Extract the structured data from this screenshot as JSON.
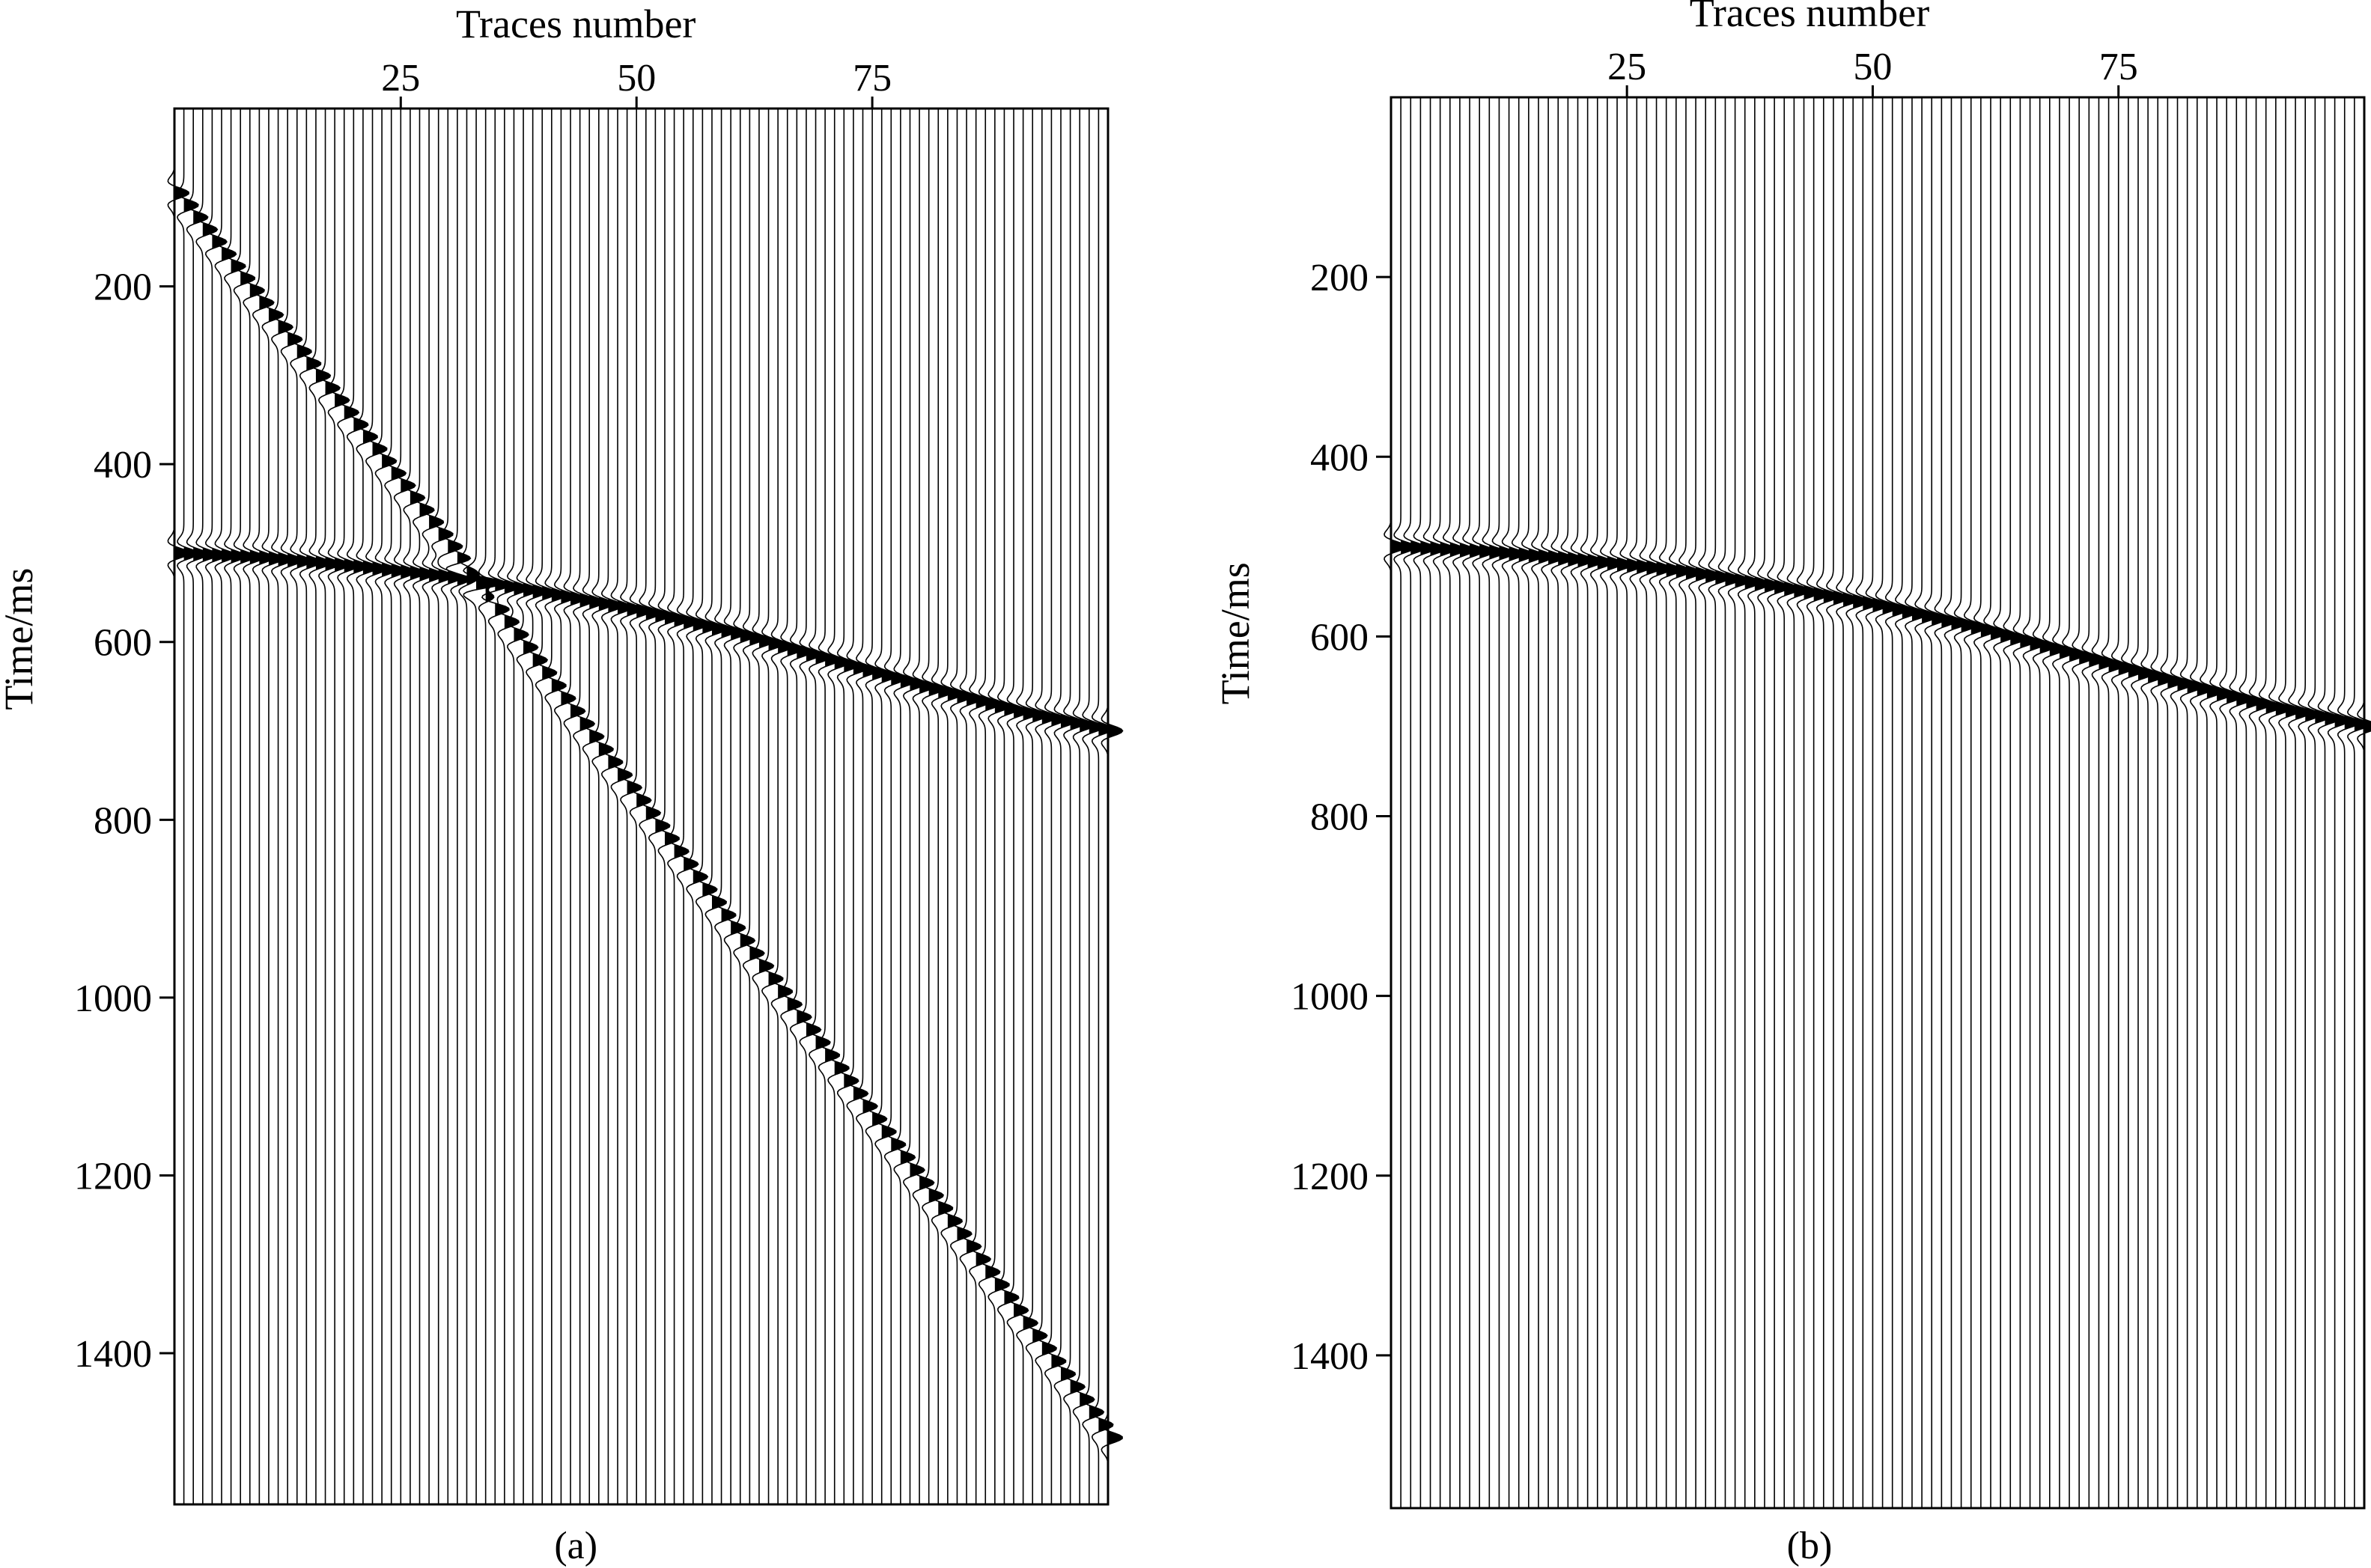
{
  "chart_data": [
    {
      "type": "seismic-wiggle",
      "caption": "(a)",
      "xlabel": "Traces number",
      "ylabel": "Time/ms",
      "x_range": [
        1,
        100
      ],
      "x_ticks": [
        25,
        50,
        75
      ],
      "y_range": [
        0,
        1570
      ],
      "y_ticks": [
        200,
        400,
        600,
        800,
        1000,
        1200,
        1400
      ],
      "trace_count": 100,
      "events": [
        {
          "name": "hyperbolic reflection",
          "trace_times_ms": [
            [
              1,
              500
            ],
            [
              10,
              505
            ],
            [
              20,
              515
            ],
            [
              30,
              527
            ],
            [
              40,
              545
            ],
            [
              50,
              565
            ],
            [
              60,
              590
            ],
            [
              70,
              620
            ],
            [
              80,
              650
            ],
            [
              90,
              678
            ],
            [
              100,
              700
            ]
          ]
        },
        {
          "name": "linear noise",
          "trace_times_ms": [
            [
              1,
              95
            ],
            [
              32,
              520
            ],
            [
              100,
              1495
            ]
          ]
        }
      ]
    },
    {
      "type": "seismic-wiggle",
      "caption": "(b)",
      "xlabel": "Traces number",
      "ylabel": "Time/ms",
      "x_range": [
        1,
        100
      ],
      "x_ticks": [
        25,
        50,
        75
      ],
      "y_range": [
        0,
        1570
      ],
      "y_ticks": [
        200,
        400,
        600,
        800,
        1000,
        1200,
        1400
      ],
      "trace_count": 100,
      "events": [
        {
          "name": "hyperbolic reflection",
          "trace_times_ms": [
            [
              1,
              500
            ],
            [
              10,
              505
            ],
            [
              20,
              515
            ],
            [
              30,
              527
            ],
            [
              40,
              545
            ],
            [
              50,
              565
            ],
            [
              60,
              590
            ],
            [
              70,
              620
            ],
            [
              80,
              650
            ],
            [
              90,
              678
            ],
            [
              100,
              700
            ]
          ]
        }
      ]
    }
  ]
}
